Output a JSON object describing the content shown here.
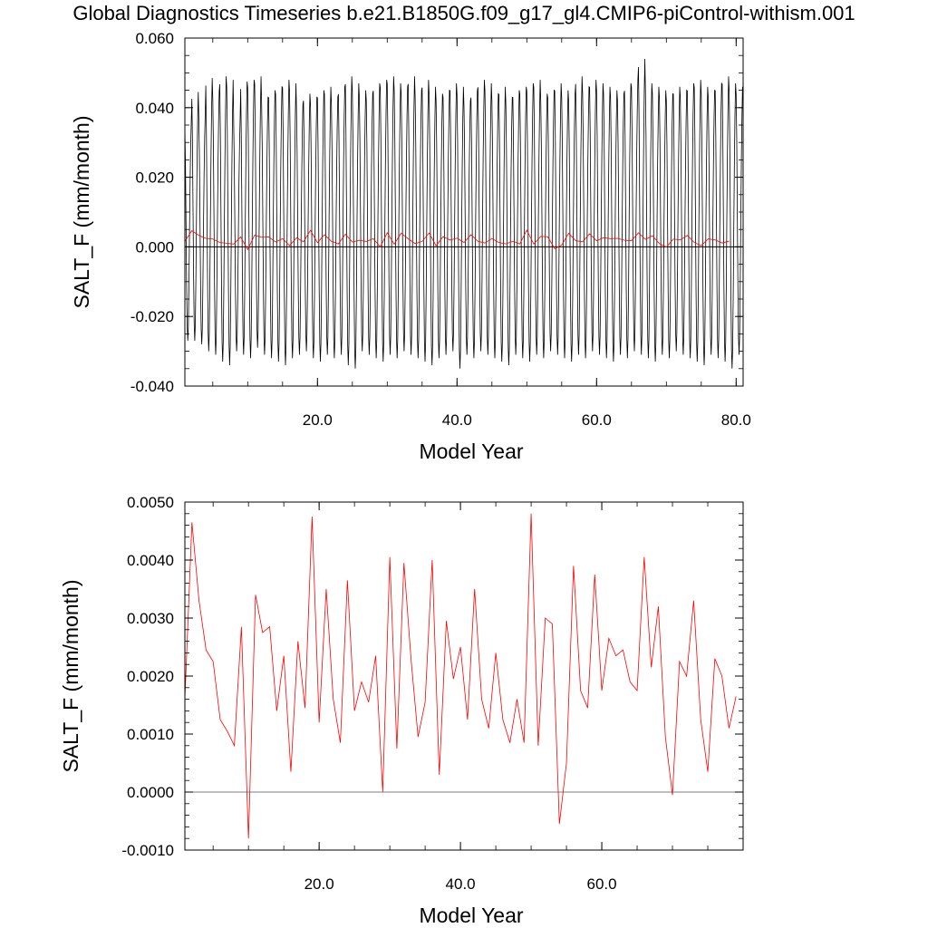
{
  "title": "Global Diagnostics Timeseries b.e21.B1850G.f09_g17_gl4.CMIP6-piControl-withism.001",
  "colors": {
    "monthly_line": "#000000",
    "annual_line": "#ff0000",
    "zero_line": "#000000",
    "frame": "#000000"
  },
  "chart_data": [
    {
      "type": "line",
      "title": "Global Diagnostics Timeseries b.e21.B1850G.f09_g17_gl4.CMIP6-piControl-withism.001",
      "xlabel": "Model Year",
      "ylabel": "SALT_F (mm/month)",
      "xlim": [
        1,
        81
      ],
      "ylim": [
        -0.04,
        0.06
      ],
      "x_tick_labels": [
        "20.0",
        "40.0",
        "60.0",
        "80.0"
      ],
      "y_tick_labels": [
        "-0.040",
        "-0.020",
        "0.000",
        "0.020",
        "0.040",
        "0.060"
      ],
      "reference_line": 0,
      "grid": false,
      "series": [
        {
          "role": "monthly",
          "color": "#000000",
          "x_start": 1,
          "x_step": 0.0833333,
          "annual_cycle": [
            0.04,
            0.028,
            0.008,
            -0.012,
            -0.026,
            -0.031,
            -0.026,
            -0.012,
            0.006,
            0.022,
            0.034,
            0.042
          ],
          "yearly_peaks": [
            0.036,
            0.0445,
            0.0385,
            0.0485,
            0.0445,
            0.049,
            0.048,
            0.0365,
            0.0475,
            0.048,
            0.049,
            0.043,
            0.045,
            0.046,
            0.048,
            0.047,
            0.041,
            0.044,
            0.043,
            0.045,
            0.046,
            0.043,
            0.046,
            0.049,
            0.047,
            0.045,
            0.044,
            0.047,
            0.048,
            0.049,
            0.047,
            0.046,
            0.049,
            0.045,
            0.048,
            0.046,
            0.044,
            0.045,
            0.047,
            0.046,
            0.042,
            0.045,
            0.048,
            0.047,
            0.044,
            0.046,
            0.043,
            0.045,
            0.046,
            0.047,
            0.048,
            0.044,
            0.045,
            0.047,
            0.045,
            0.044,
            0.049,
            0.046,
            0.048,
            0.047,
            0.046,
            0.045,
            0.044,
            0.047,
            0.048,
            0.054,
            0.047,
            0.046,
            0.045,
            0.044,
            0.046,
            0.045,
            0.047,
            0.048,
            0.046,
            0.045,
            0.047,
            0.049,
            0.047,
            0.046
          ],
          "yearly_troughs": [
            -0.027,
            -0.027,
            -0.028,
            -0.03,
            -0.031,
            -0.033,
            -0.034,
            -0.03,
            -0.031,
            -0.032,
            -0.029,
            -0.031,
            -0.032,
            -0.033,
            -0.034,
            -0.032,
            -0.031,
            -0.03,
            -0.032,
            -0.033,
            -0.031,
            -0.032,
            -0.031,
            -0.034,
            -0.035,
            -0.03,
            -0.031,
            -0.032,
            -0.033,
            -0.031,
            -0.032,
            -0.03,
            -0.031,
            -0.032,
            -0.033,
            -0.034,
            -0.032,
            -0.031,
            -0.03,
            -0.035,
            -0.031,
            -0.032,
            -0.03,
            -0.031,
            -0.032,
            -0.033,
            -0.034,
            -0.031,
            -0.032,
            -0.033,
            -0.031,
            -0.032,
            -0.03,
            -0.031,
            -0.032,
            -0.033,
            -0.031,
            -0.032,
            -0.03,
            -0.031,
            -0.032,
            -0.033,
            -0.031,
            -0.032,
            -0.03,
            -0.031,
            -0.032,
            -0.033,
            -0.031,
            -0.032,
            -0.03,
            -0.031,
            -0.032,
            -0.033,
            -0.034,
            -0.031,
            -0.032,
            -0.033,
            -0.035,
            -0.031
          ]
        },
        {
          "role": "annual",
          "color": "#ff0000",
          "x_start": 1,
          "x_step": 1,
          "values": [
            0.0016,
            0.00465,
            0.0033,
            0.00245,
            0.00225,
            0.00125,
            0.00105,
            0.0008,
            0.00285,
            -0.0008,
            0.0034,
            0.00275,
            0.00285,
            0.0014,
            0.00235,
            0.00035,
            0.0026,
            0.00145,
            0.00475,
            0.0012,
            0.0035,
            0.0016,
            0.00085,
            0.00365,
            0.0014,
            0.0019,
            0.00155,
            0.00235,
            0.0,
            0.00405,
            0.00075,
            0.00395,
            0.0023,
            0.00095,
            0.00155,
            0.004,
            0.0003,
            0.00295,
            0.00195,
            0.0025,
            0.00125,
            0.0035,
            0.0016,
            0.0011,
            0.0024,
            0.00125,
            0.00085,
            0.0016,
            0.00085,
            0.0048,
            0.0008,
            0.003,
            0.0029,
            -0.00055,
            0.0005,
            0.0039,
            0.00175,
            0.00145,
            0.00375,
            0.00175,
            0.00265,
            0.00235,
            0.00245,
            0.0019,
            0.00175,
            0.00405,
            0.00215,
            0.0032,
            0.00095,
            -5e-05,
            0.00225,
            0.002,
            0.0033,
            0.00125,
            0.00035,
            0.0023,
            0.002,
            0.0011,
            0.00165
          ]
        }
      ]
    },
    {
      "type": "line",
      "title": "",
      "xlabel": "Model Year",
      "ylabel": "SALT_F (mm/month)",
      "xlim": [
        1,
        80
      ],
      "ylim": [
        -0.001,
        0.005
      ],
      "x_tick_labels": [
        "20.0",
        "40.0",
        "60.0"
      ],
      "y_tick_labels": [
        "-0.0010",
        "0.0000",
        "0.0010",
        "0.0020",
        "0.0030",
        "0.0040",
        "0.0050"
      ],
      "reference_line": 0,
      "grid": false,
      "series": [
        {
          "role": "annual",
          "color": "#ff0000",
          "x_start": 1,
          "x_step": 1,
          "values": [
            0.0016,
            0.00465,
            0.0033,
            0.00245,
            0.00225,
            0.00125,
            0.00105,
            0.0008,
            0.00285,
            -0.0008,
            0.0034,
            0.00275,
            0.00285,
            0.0014,
            0.00235,
            0.00035,
            0.0026,
            0.00145,
            0.00475,
            0.0012,
            0.0035,
            0.0016,
            0.00085,
            0.00365,
            0.0014,
            0.0019,
            0.00155,
            0.00235,
            0.0,
            0.00405,
            0.00075,
            0.00395,
            0.0023,
            0.00095,
            0.00155,
            0.004,
            0.0003,
            0.00295,
            0.00195,
            0.0025,
            0.00125,
            0.0035,
            0.0016,
            0.0011,
            0.0024,
            0.00125,
            0.00085,
            0.0016,
            0.00085,
            0.0048,
            0.0008,
            0.003,
            0.0029,
            -0.00055,
            0.0005,
            0.0039,
            0.00175,
            0.00145,
            0.00375,
            0.00175,
            0.00265,
            0.00235,
            0.00245,
            0.0019,
            0.00175,
            0.00405,
            0.00215,
            0.0032,
            0.00095,
            -5e-05,
            0.00225,
            0.002,
            0.0033,
            0.00125,
            0.00035,
            0.0023,
            0.002,
            0.0011,
            0.00165
          ]
        }
      ]
    }
  ]
}
